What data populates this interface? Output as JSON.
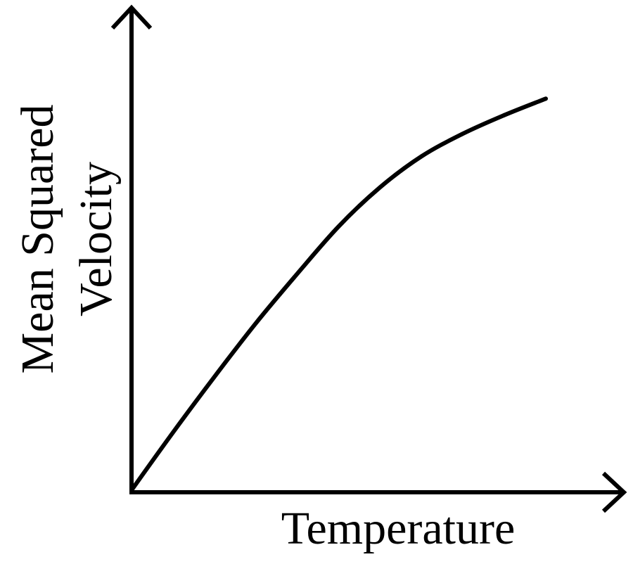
{
  "chart_data": {
    "type": "line",
    "title": "",
    "xlabel": "Temperature",
    "ylabel": [
      "Mean Squared",
      "Velocity"
    ],
    "grid": false,
    "legend": "none",
    "axis_color": "#000000",
    "line_color": "#000000",
    "xlim": [
      0,
      1
    ],
    "ylim": [
      0,
      1
    ],
    "series": [
      {
        "x": [
          0,
          0.1,
          0.2,
          0.3,
          0.4,
          0.5,
          0.6,
          0.7,
          0.8,
          0.9,
          1.0
        ],
        "y": [
          0,
          0.14,
          0.275,
          0.405,
          0.525,
          0.64,
          0.735,
          0.81,
          0.865,
          0.91,
          0.95
        ]
      }
    ]
  }
}
